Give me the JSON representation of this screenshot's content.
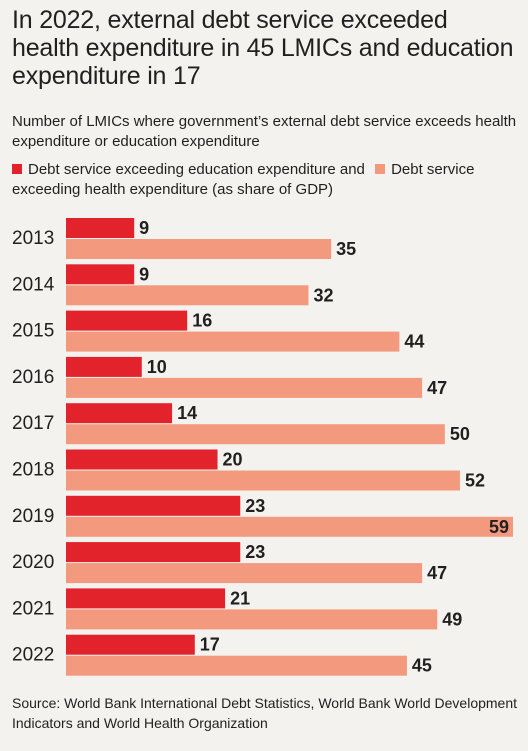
{
  "title": "In 2022, external debt service exceeded health expenditure in 45 LMICs and education expenditure in 17",
  "subtitle": "Number of LMICs where government’s external debt service exceeds health expenditure or education expenditure",
  "source": "Source: World Bank International Debt Statistics, World Bank World Development Indicators and World Health Organization",
  "chart_data": {
    "type": "bar",
    "orientation": "horizontal",
    "categories": [
      "2013",
      "2014",
      "2015",
      "2016",
      "2017",
      "2018",
      "2019",
      "2020",
      "2021",
      "2022"
    ],
    "series": [
      {
        "name": "Debt service exceeding education expenditure and",
        "color": "#e3232c",
        "values": [
          9,
          9,
          16,
          10,
          14,
          20,
          23,
          23,
          21,
          17
        ]
      },
      {
        "name": "Debt service exceeding health expenditure (as share of GDP)",
        "color": "#f39a7e",
        "values": [
          35,
          32,
          44,
          47,
          50,
          52,
          59,
          47,
          49,
          45
        ]
      }
    ],
    "xlim": [
      0,
      59
    ],
    "grid": false,
    "legend": "top",
    "data_labels": true
  }
}
